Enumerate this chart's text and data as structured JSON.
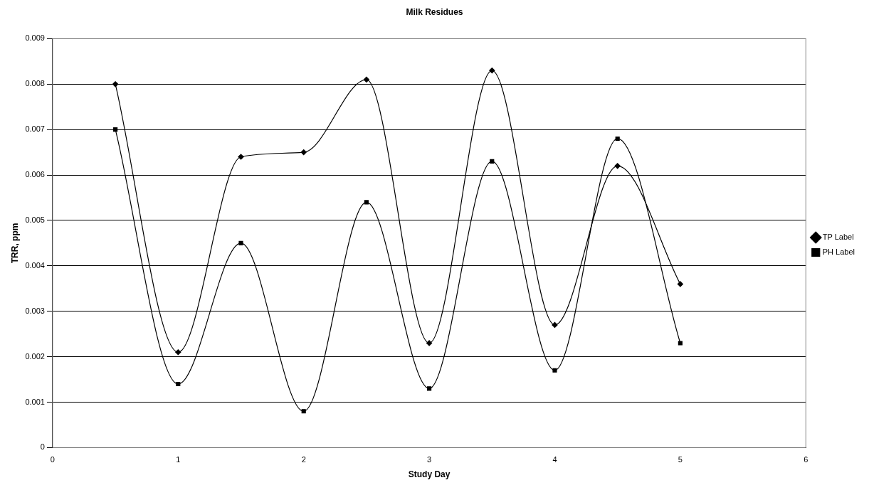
{
  "chart_data": {
    "type": "line",
    "title": "Milk Residues",
    "xlabel": "Study Day",
    "ylabel": "TRR, ppm",
    "x": [
      0.5,
      1,
      1.5,
      2,
      2.5,
      3,
      3.5,
      4,
      4.5,
      5
    ],
    "series": [
      {
        "name": "TP Label",
        "color": "#000000",
        "marker": "diamond",
        "values": [
          0.008,
          0.0021,
          0.0064,
          0.0065,
          0.0081,
          0.0023,
          0.0083,
          0.0027,
          0.0062,
          0.0036
        ]
      },
      {
        "name": "PH Label",
        "color": "#000000",
        "marker": "square",
        "values": [
          0.007,
          0.0014,
          0.0045,
          0.0008,
          0.0054,
          0.0013,
          0.0063,
          0.0017,
          0.0068,
          0.0023
        ]
      }
    ],
    "xlim": [
      0,
      6
    ],
    "xticks": [
      0,
      1,
      2,
      3,
      4,
      5,
      6
    ],
    "ylim": [
      0,
      0.009
    ],
    "yticks": [
      0,
      0.001,
      0.002,
      0.003,
      0.004,
      0.005,
      0.006,
      0.007,
      0.008,
      0.009
    ],
    "grid": "y",
    "legend": "right",
    "line_style": "solid"
  }
}
